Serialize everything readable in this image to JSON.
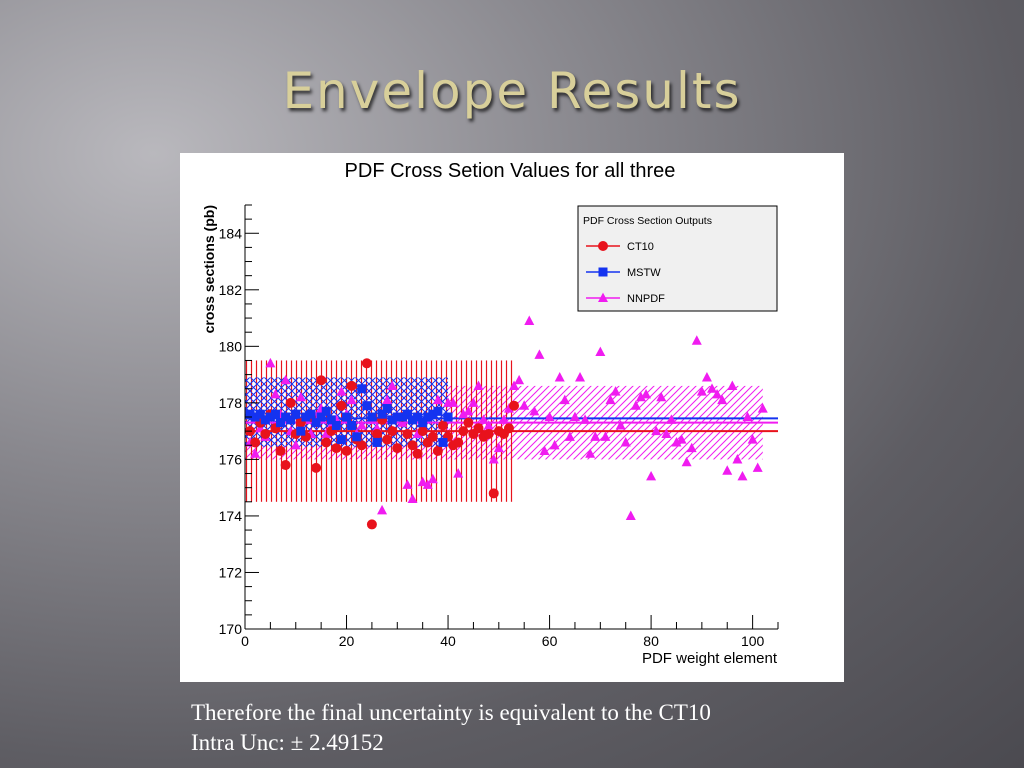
{
  "slide": {
    "title": "Envelope Results",
    "note_line1": "Therefore the final uncertainty is equivalent to the CT10",
    "note_line2": "Intra Unc: ± 2.49152"
  },
  "colors": {
    "CT10": "#e8121c",
    "MSTW": "#1433f0",
    "NNPDF": "#f01cf0"
  },
  "chart_data": {
    "type": "scatter",
    "title": "PDF Cross Setion Values for all three",
    "xlabel": "PDF weight element",
    "ylabel": "cross sections (pb)",
    "xlim": [
      0,
      105
    ],
    "ylim": [
      170,
      185
    ],
    "x_ticks": [
      0,
      20,
      40,
      60,
      80,
      100
    ],
    "y_ticks": [
      170,
      172,
      174,
      176,
      178,
      180,
      182,
      184
    ],
    "grid": false,
    "legend": {
      "title": "PDF Cross Section Outputs",
      "placement": "top-right"
    },
    "series": [
      {
        "name": "CT10",
        "marker": "circle",
        "central": 177.0,
        "band": [
          174.5,
          179.5
        ],
        "band_x": [
          0,
          53
        ],
        "x": [
          1,
          2,
          3,
          4,
          5,
          6,
          7,
          8,
          9,
          10,
          11,
          12,
          13,
          14,
          15,
          16,
          17,
          18,
          19,
          20,
          21,
          22,
          23,
          24,
          25,
          26,
          27,
          28,
          29,
          30,
          31,
          32,
          33,
          34,
          35,
          36,
          37,
          38,
          39,
          40,
          41,
          42,
          43,
          44,
          45,
          46,
          47,
          48,
          49,
          50,
          51,
          52,
          53
        ],
        "y": [
          177.0,
          176.6,
          177.3,
          176.9,
          177.6,
          177.1,
          176.3,
          175.8,
          178.0,
          176.9,
          177.3,
          176.8,
          177.5,
          175.7,
          178.8,
          176.6,
          177.0,
          176.4,
          177.9,
          176.3,
          178.6,
          176.7,
          176.5,
          179.4,
          173.7,
          176.9,
          177.4,
          176.7,
          177.0,
          176.4,
          177.5,
          176.9,
          176.5,
          176.2,
          177.0,
          176.6,
          176.8,
          176.3,
          177.2,
          176.8,
          176.5,
          176.6,
          177.0,
          177.3,
          176.9,
          177.1,
          176.8,
          176.9,
          174.8,
          177.0,
          176.9,
          177.1,
          177.9
        ]
      },
      {
        "name": "MSTW",
        "marker": "square",
        "central": 177.45,
        "band": [
          176.45,
          178.9
        ],
        "band_x": [
          0,
          40
        ],
        "x": [
          1,
          2,
          3,
          4,
          5,
          6,
          7,
          8,
          9,
          10,
          11,
          12,
          13,
          14,
          15,
          16,
          17,
          18,
          19,
          20,
          21,
          22,
          23,
          24,
          25,
          26,
          27,
          28,
          29,
          30,
          31,
          32,
          33,
          34,
          35,
          36,
          37,
          38,
          39,
          40
        ],
        "y": [
          177.6,
          177.5,
          177.6,
          177.4,
          177.5,
          177.6,
          177.3,
          177.5,
          177.4,
          177.6,
          177.0,
          177.5,
          177.6,
          177.3,
          177.5,
          177.7,
          177.4,
          177.2,
          176.7,
          177.5,
          177.2,
          176.8,
          178.5,
          177.9,
          177.5,
          176.6,
          177.6,
          177.8,
          177.4,
          177.5,
          177.5,
          177.6,
          177.4,
          177.5,
          177.3,
          177.5,
          177.6,
          177.7,
          176.6,
          177.5
        ]
      },
      {
        "name": "NNPDF",
        "marker": "triangle",
        "central": 177.3,
        "band": [
          176.0,
          178.6
        ],
        "band_x": [
          0,
          102
        ],
        "x": [
          1,
          2,
          3,
          4,
          5,
          6,
          7,
          8,
          9,
          10,
          11,
          12,
          13,
          14,
          15,
          16,
          17,
          18,
          19,
          20,
          21,
          22,
          23,
          24,
          25,
          26,
          27,
          28,
          29,
          30,
          31,
          32,
          33,
          34,
          35,
          36,
          37,
          38,
          39,
          40,
          41,
          42,
          43,
          44,
          45,
          46,
          47,
          48,
          49,
          50,
          51,
          52,
          53,
          54,
          55,
          56,
          57,
          58,
          59,
          60,
          61,
          62,
          63,
          64,
          65,
          66,
          67,
          68,
          69,
          70,
          71,
          72,
          73,
          74,
          75,
          76,
          77,
          78,
          79,
          80,
          81,
          82,
          83,
          84,
          85,
          86,
          87,
          88,
          89,
          90,
          91,
          92,
          93,
          94,
          95,
          96,
          97,
          98,
          99,
          100,
          101,
          102
        ],
        "y": [
          176.6,
          176.2,
          177.1,
          176.8,
          179.4,
          178.3,
          177.6,
          178.8,
          177.0,
          176.5,
          178.2,
          177.4,
          176.9,
          177.5,
          177.8,
          176.9,
          177.2,
          177.4,
          178.4,
          177.6,
          178.1,
          176.9,
          177.2,
          177.9,
          177.4,
          177.1,
          174.2,
          178.1,
          178.6,
          177.5,
          177.3,
          175.1,
          174.6,
          176.9,
          175.2,
          175.1,
          175.3,
          178.1,
          177.2,
          178.0,
          178.0,
          175.5,
          177.6,
          177.7,
          178.0,
          178.6,
          177.4,
          177.2,
          176.0,
          176.4,
          177.4,
          177.8,
          178.6,
          178.8,
          177.9,
          180.9,
          177.7,
          179.7,
          176.3,
          177.5,
          176.5,
          178.9,
          178.1,
          176.8,
          177.5,
          178.9,
          177.4,
          176.2,
          176.8,
          179.8,
          176.8,
          178.1,
          178.4,
          177.2,
          176.6,
          174.0,
          177.9,
          178.2,
          178.3,
          175.4,
          177.0,
          178.2,
          176.9,
          177.4,
          176.6,
          176.7,
          175.9,
          176.4,
          180.2,
          178.4,
          178.9,
          178.5,
          178.3,
          178.1,
          175.6,
          178.6,
          176.0,
          175.4,
          177.5,
          176.7,
          175.7,
          177.8
        ]
      }
    ]
  }
}
